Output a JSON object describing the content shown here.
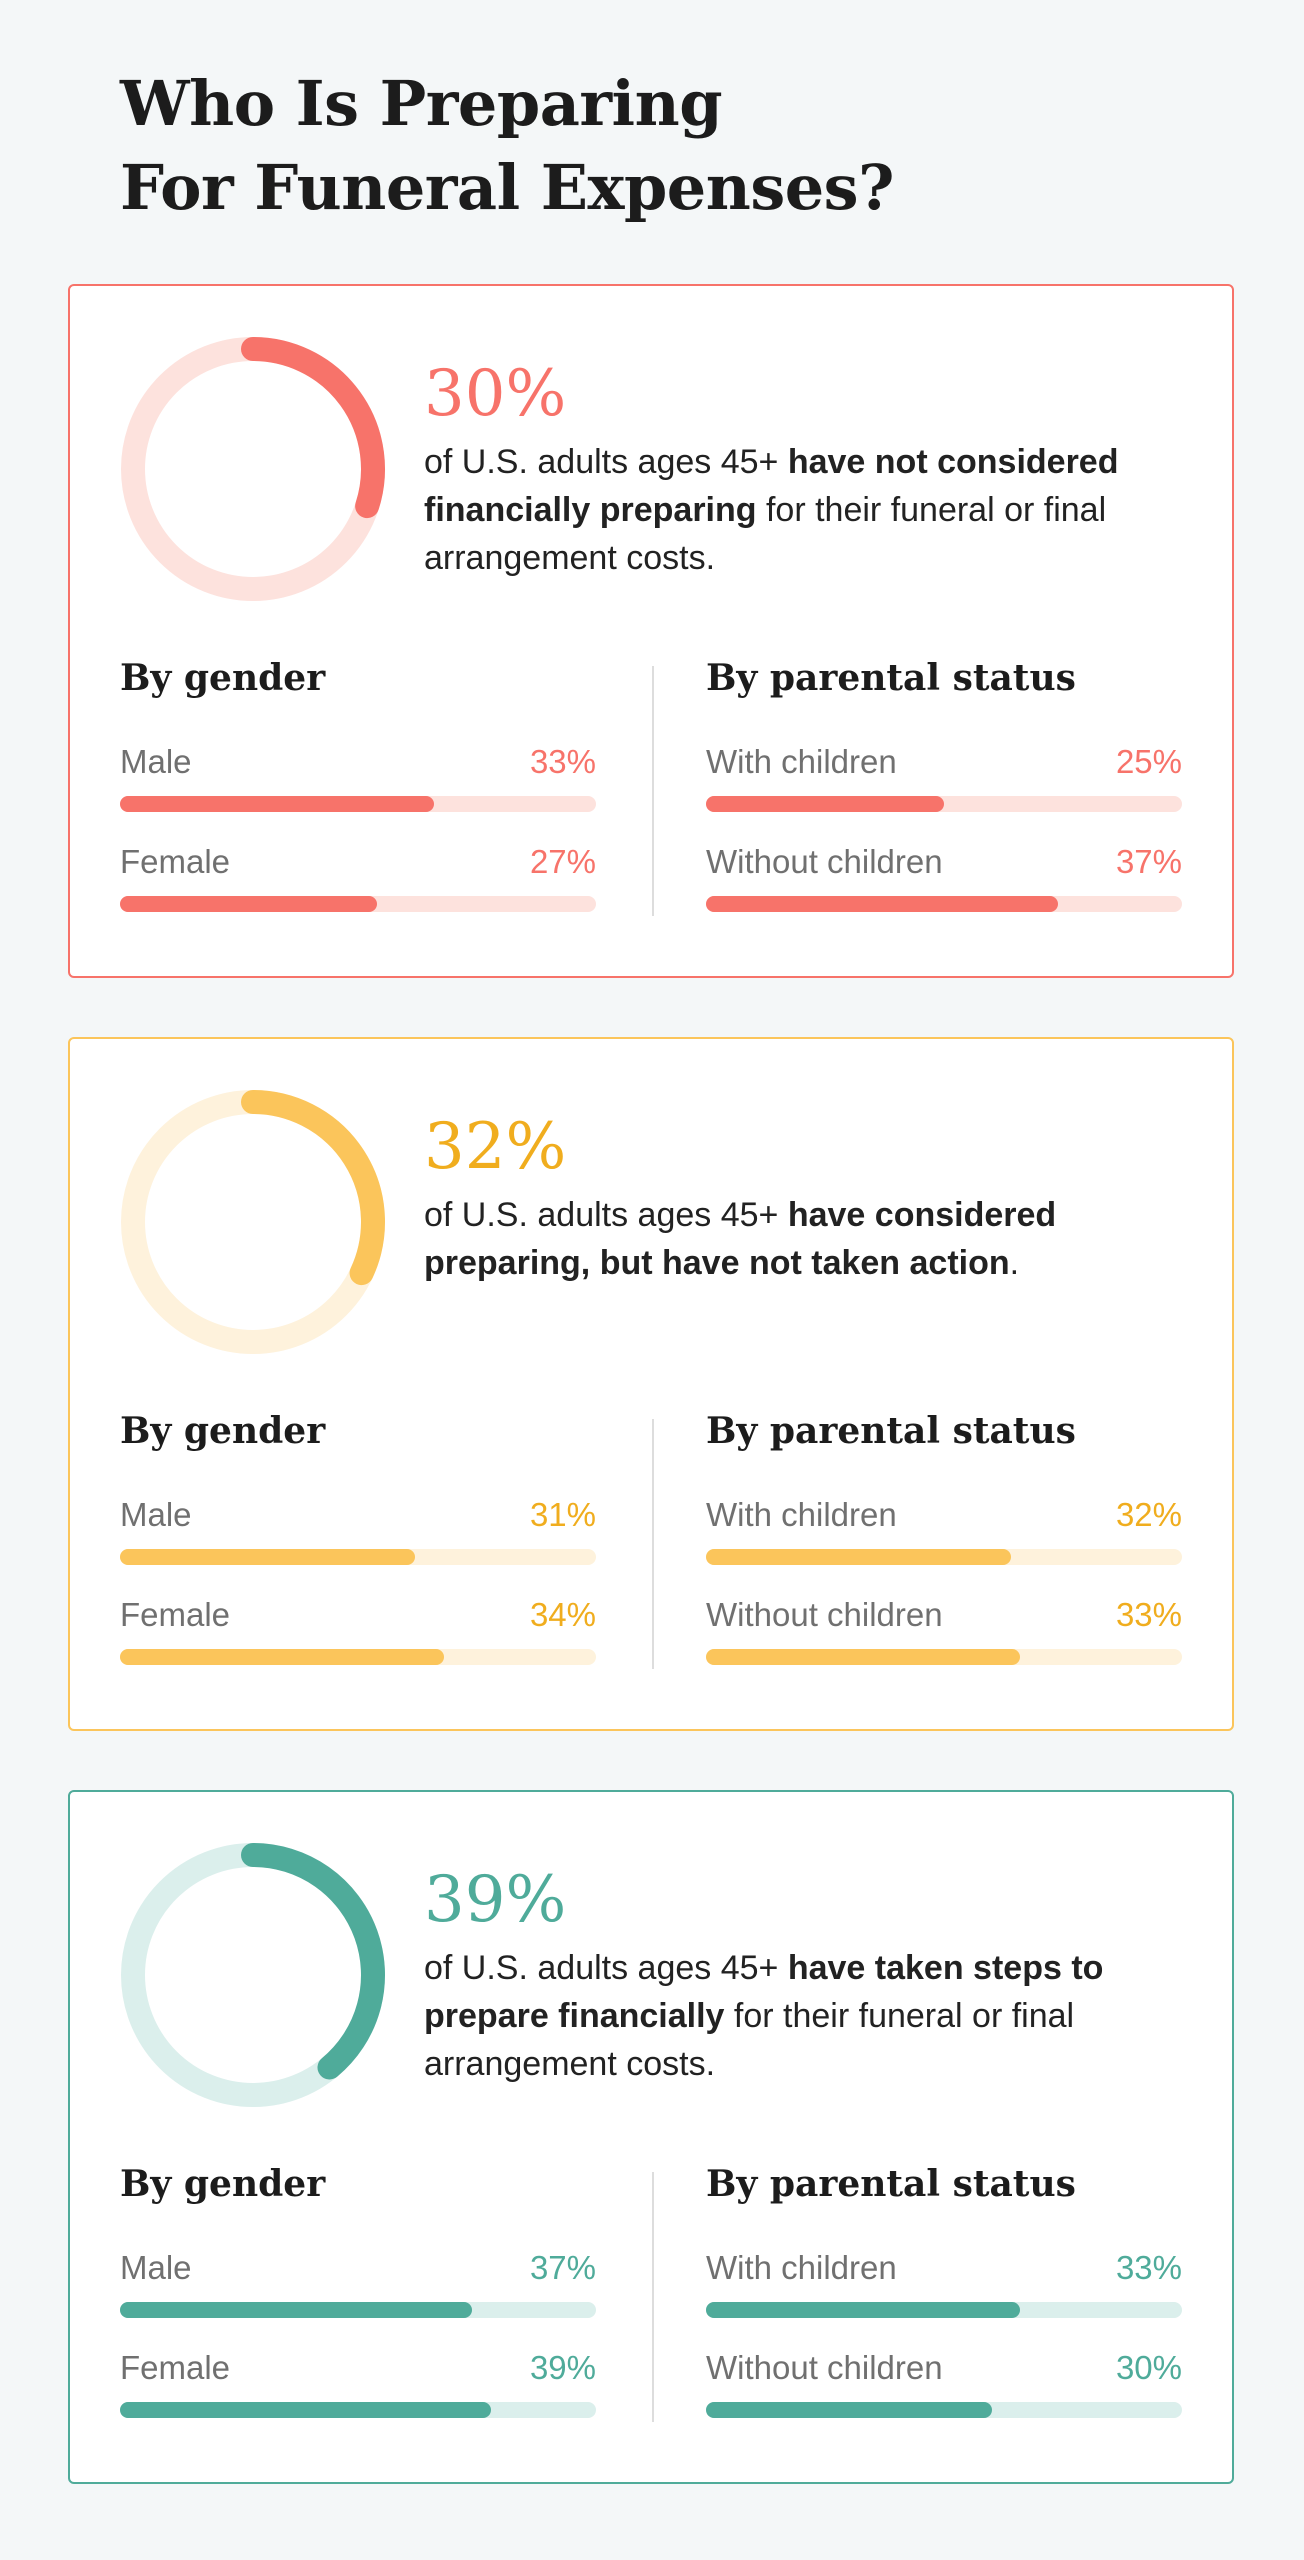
{
  "title_line1": "Who Is Preparing",
  "title_line2": "For Funeral Expenses?",
  "chart_data": [
    {
      "type": "donut",
      "value": 30,
      "value_label": "30%",
      "text_before": "of U.S. adults ages 45+ ",
      "text_bold": "have not considered financially preparing",
      "text_after": " for their funeral or final arrangement costs.",
      "colors": {
        "accent": "#f7736a",
        "light": "#fde2dd"
      },
      "groups": [
        {
          "title": "By gender",
          "items": [
            {
              "label": "Male",
              "value": 33,
              "value_label": "33%"
            },
            {
              "label": "Female",
              "value": 27,
              "value_label": "27%"
            }
          ]
        },
        {
          "title": "By parental status",
          "items": [
            {
              "label": "With children",
              "value": 25,
              "value_label": "25%"
            },
            {
              "label": "Without children",
              "value": 37,
              "value_label": "37%"
            }
          ]
        }
      ]
    },
    {
      "type": "donut",
      "value": 32,
      "value_label": "32%",
      "text_before": "of U.S. adults ages 45+ ",
      "text_bold": "have considered preparing, but have not taken action",
      "text_after": ".",
      "colors": {
        "accent": "#fbc55b",
        "light": "#fef2dc",
        "text": "#f0ad1e"
      },
      "groups": [
        {
          "title": "By gender",
          "items": [
            {
              "label": "Male",
              "value": 31,
              "value_label": "31%"
            },
            {
              "label": "Female",
              "value": 34,
              "value_label": "34%"
            }
          ]
        },
        {
          "title": "By parental status",
          "items": [
            {
              "label": "With children",
              "value": 32,
              "value_label": "32%"
            },
            {
              "label": "Without children",
              "value": 33,
              "value_label": "33%"
            }
          ]
        }
      ]
    },
    {
      "type": "donut",
      "value": 39,
      "value_label": "39%",
      "text_before": "of U.S. adults ages 45+ ",
      "text_bold": "have taken steps to prepare financially",
      "text_after": " for their funeral or final arrangement costs.",
      "colors": {
        "accent": "#4fab9a",
        "light": "#dbefec"
      },
      "groups": [
        {
          "title": "By gender",
          "items": [
            {
              "label": "Male",
              "value": 37,
              "value_label": "37%"
            },
            {
              "label": "Female",
              "value": 39,
              "value_label": "39%"
            }
          ]
        },
        {
          "title": "By parental status",
          "items": [
            {
              "label": "With children",
              "value": 33,
              "value_label": "33%"
            },
            {
              "label": "Without children",
              "value": 30,
              "value_label": "30%"
            }
          ]
        }
      ]
    }
  ]
}
